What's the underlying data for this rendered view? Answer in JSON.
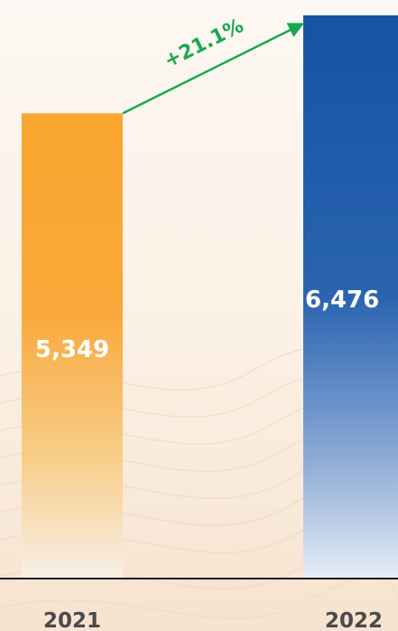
{
  "chart_data": {
    "type": "bar",
    "categories": [
      "2021",
      "2022"
    ],
    "values": [
      5349,
      6476
    ],
    "value_labels": [
      "5,349",
      "6,476"
    ],
    "change_label": "+21.1%",
    "ylim": [
      0,
      6476
    ],
    "grid": false,
    "legend": "none",
    "colors": {
      "bar_2021": "#f9a62e",
      "bar_2022": "#1b56a6",
      "change_arrow": "#1aa84e",
      "axis_line": "#1a1a1a",
      "tick_text": "#4a4a4a",
      "value_text": "#ffffff"
    }
  }
}
